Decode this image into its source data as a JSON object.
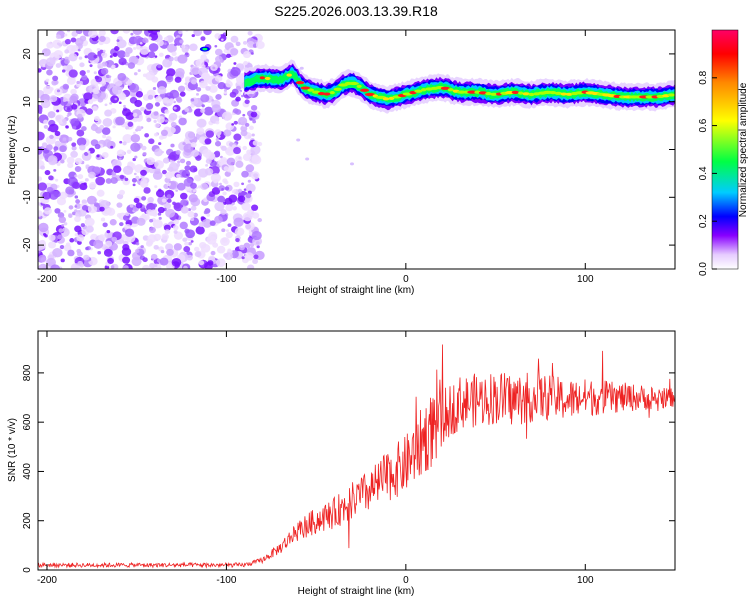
{
  "title": "S225.2026.003.13.39.R18",
  "chart_data": [
    {
      "type": "heatmap",
      "xlabel": "Height of straight line (km)",
      "ylabel": "Frequency (Hz)",
      "xlim": [
        -205,
        150
      ],
      "ylim": [
        -25,
        25
      ],
      "x_ticks": [
        -200,
        -100,
        0,
        100
      ],
      "y_ticks": [
        -20,
        -10,
        0,
        10,
        20
      ],
      "ridge": {
        "description_points_x": [
          -90,
          -80,
          -70,
          -63,
          -57,
          -50,
          -45,
          -40,
          -35,
          -30,
          -25,
          -20,
          -15,
          -10,
          -5,
          0,
          10,
          20,
          30,
          40,
          50,
          60,
          70,
          80,
          90,
          100,
          110,
          120,
          130,
          140,
          150
        ],
        "description_points_y": [
          14,
          15,
          14.5,
          16,
          13,
          12,
          11.5,
          12,
          13.5,
          14,
          13,
          11.5,
          11,
          10.5,
          11,
          11.5,
          12.5,
          13,
          12,
          12,
          11.5,
          12,
          11.5,
          12,
          11.5,
          12,
          11.5,
          11,
          11,
          11,
          11.5
        ]
      },
      "noise_region": [
        -205,
        -85
      ],
      "colorbar": {
        "label": "Normalized spectral amplitude",
        "ticks": [
          "0.0",
          "0.2",
          "0.4",
          "0.6",
          "0.8"
        ],
        "range": [
          0,
          1
        ]
      }
    },
    {
      "type": "line",
      "xlabel": "Height of straight line (km)",
      "ylabel": "SNR (10 * v/v)",
      "xlim": [
        -205,
        150
      ],
      "ylim": [
        0,
        970
      ],
      "x_ticks": [
        -200,
        -100,
        0,
        100
      ],
      "y_ticks": [
        0,
        200,
        400,
        600,
        800
      ],
      "color": "#ee2222",
      "envelope_x": [
        -205,
        -90,
        -80,
        -70,
        -60,
        -50,
        -40,
        -30,
        -20,
        -10,
        0,
        10,
        20,
        30,
        40,
        50,
        60,
        70,
        80,
        90,
        100,
        110,
        120,
        130,
        140,
        150
      ],
      "envelope_y": [
        20,
        20,
        40,
        90,
        160,
        200,
        230,
        280,
        320,
        380,
        430,
        530,
        620,
        680,
        690,
        700,
        690,
        700,
        700,
        690,
        700,
        700,
        700,
        700,
        700,
        700
      ]
    }
  ]
}
